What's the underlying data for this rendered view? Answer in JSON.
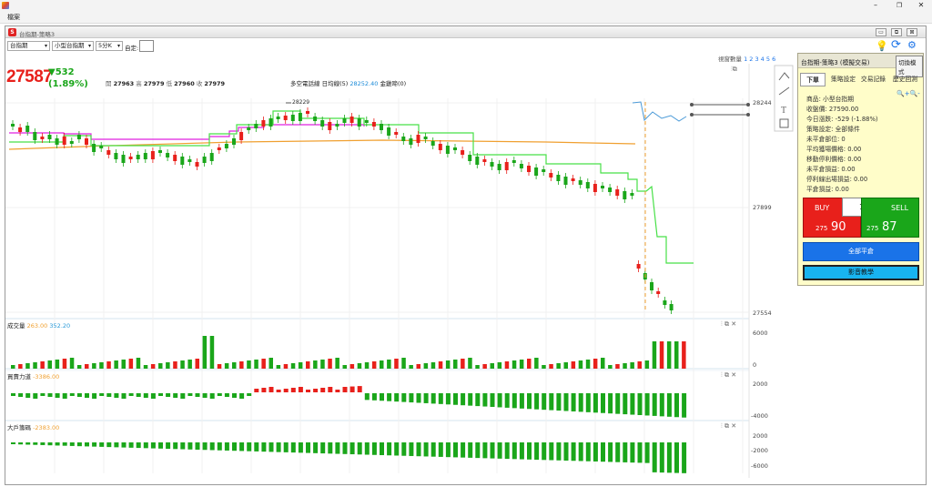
{
  "window": {
    "menu_file": "檔案",
    "inner_title": "台指期-策略3"
  },
  "toolbar": {
    "product": "台指期",
    "contract": "小型台指期",
    "period": "5分K",
    "custom_label": "自定:",
    "custom_value": ""
  },
  "view_count": {
    "label": "視窗數量",
    "options": "1 2 3 4 5 6"
  },
  "quote": {
    "price": "27587",
    "change": "▼532",
    "change_pct": "(1.89%)",
    "open_label": "開",
    "open": "27963",
    "high_label": "高",
    "high": "27979",
    "low_label": "低",
    "low": "27960",
    "close_label": "收",
    "close": "27979",
    "indicator_label": "多空電話線 日均線(5)",
    "indicator_value": "28252.40",
    "indicator_tail": "金雞啼(0)",
    "peak_label": "28229"
  },
  "price_axis": {
    "top": "28244",
    "mid": "27899",
    "bottom": "27554"
  },
  "volume_pane": {
    "name": "成交量",
    "v1": "263.00",
    "v2": "352.20",
    "ticks": [
      "6000",
      "0"
    ]
  },
  "buysell_pane": {
    "name": "買賣力道",
    "value": "-3386.00",
    "ticks": [
      "2000",
      "-4000"
    ]
  },
  "bigplayer_pane": {
    "name": "大戶籌碼",
    "value": "-2383.00",
    "ticks": [
      "2000",
      "-2000",
      "-6000"
    ]
  },
  "panel": {
    "title": "台指期-策略3 (模擬交易)",
    "switch_mode": "切換模式",
    "tabs": [
      "下單",
      "策略設定",
      "交易記錄",
      "歷史回測"
    ],
    "info": [
      "商品: 小型台指期",
      "收盤價: 27590.00",
      "今日漲跌: -529 (-1.88%)",
      "策略設定: 全部條件",
      "未平倉部位: 0",
      "平均獲場價格: 0.00",
      "移動停利價格: 0.00",
      "未平倉損益: 0.00",
      "停利線出場損益: 0.00",
      "平倉損益: 0.00"
    ],
    "buy_label": "BUY",
    "sell_label": "SELL",
    "qty": "1",
    "bid_small": "275",
    "bid_big": "90",
    "ask_small": "275",
    "ask_big": "87",
    "close_all": "全部平倉",
    "video": "影音教學"
  },
  "colors": {
    "up": "#e8201b",
    "down": "#1aa61a",
    "long_line": "#e020e0",
    "short_line": "#48e048",
    "avg_line": "#f0a030",
    "blue": "#1a73e8"
  }
}
